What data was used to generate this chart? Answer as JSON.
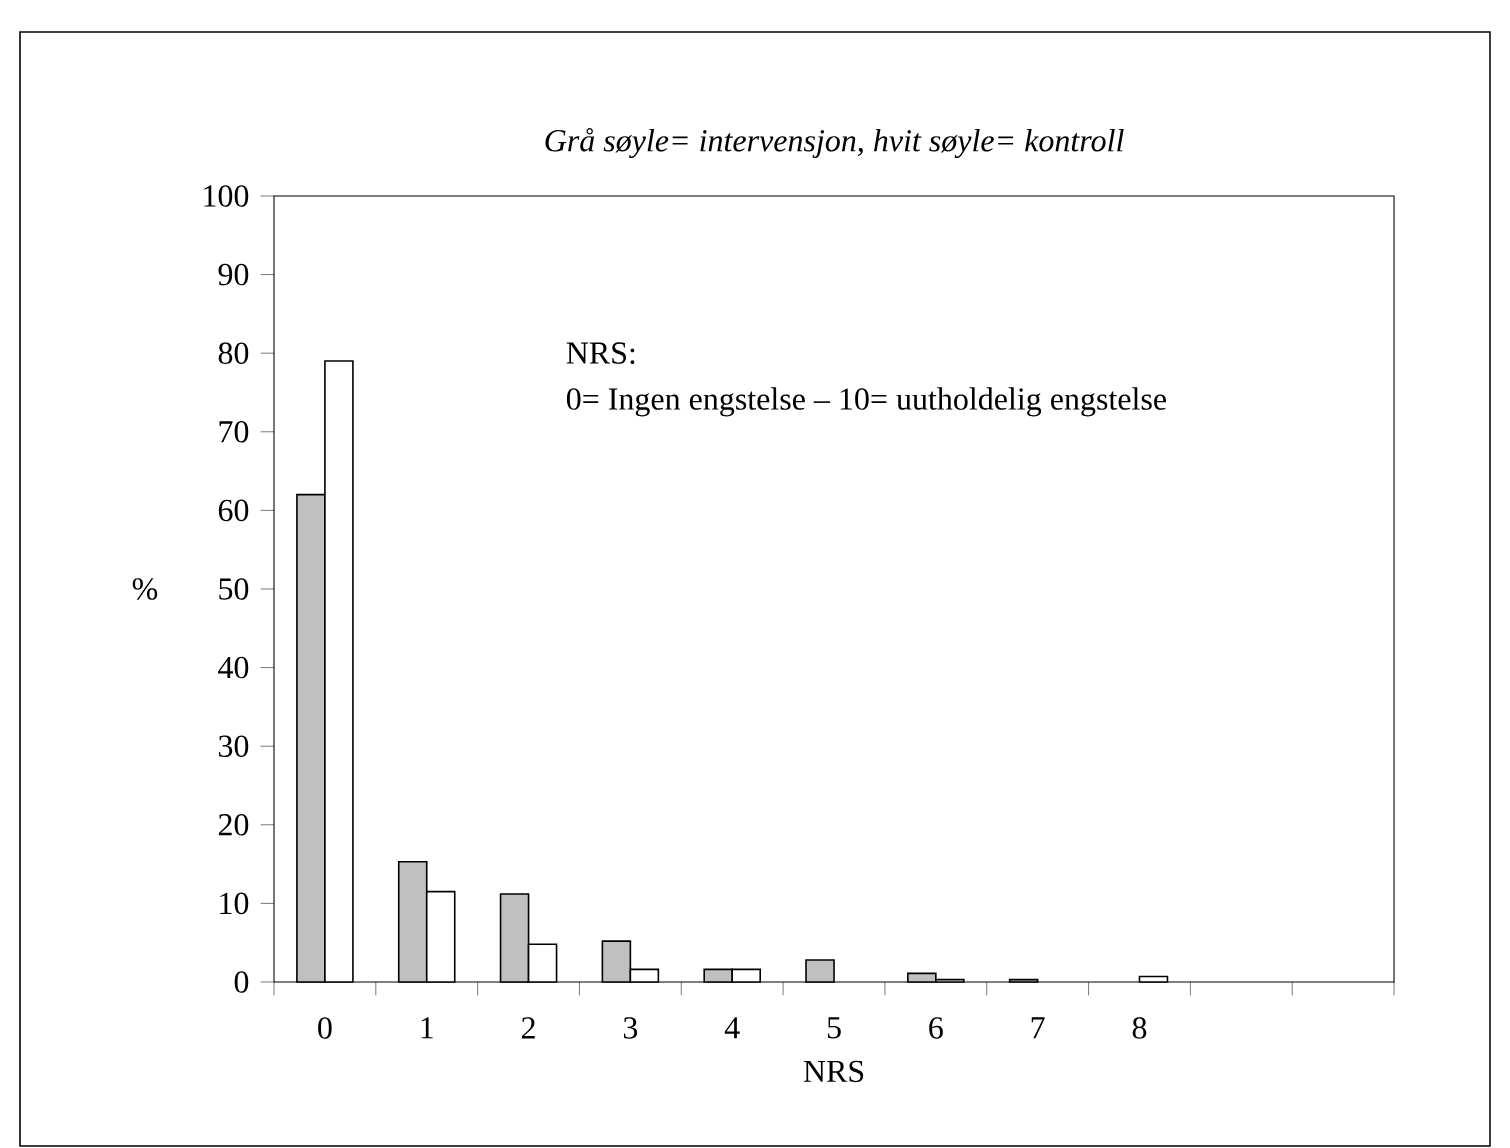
{
  "chart_data": {
    "type": "bar",
    "title": "Grå søyle= intervensjon, hvit søyle= kontroll",
    "xlabel": "NRS",
    "ylabel": "%",
    "annotations": [
      "NRS:",
      "0= Ingen engstelse – 10= uutholdelig engstelse"
    ],
    "categories": [
      "0",
      "1",
      "2",
      "3",
      "4",
      "5",
      "6",
      "7",
      "8",
      null,
      null
    ],
    "series": [
      {
        "color": "#c0c0c0",
        "values": [
          62,
          15.3,
          11.2,
          5.2,
          1.6,
          2.8,
          1.1,
          0.3,
          0,
          0,
          0
        ]
      },
      {
        "color": "#ffffff",
        "values": [
          79,
          11.5,
          4.8,
          1.6,
          1.6,
          0,
          0.3,
          0,
          0.7,
          0,
          0
        ]
      }
    ],
    "ylim": [
      0,
      100
    ],
    "yticks": [
      0,
      10,
      20,
      30,
      40,
      50,
      60,
      70,
      80,
      90,
      100
    ],
    "grid": false
  }
}
